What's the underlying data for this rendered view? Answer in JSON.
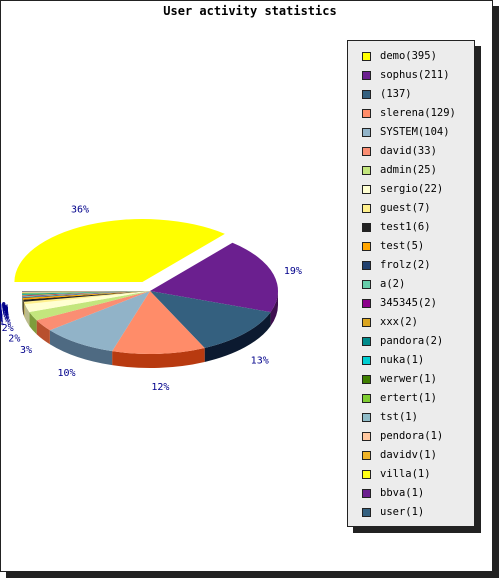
{
  "chart_data": {
    "type": "pie",
    "style": "3d-exploded",
    "title": "User activity statistics",
    "legend_position": "right",
    "slices": [
      {
        "label": "demo(395)",
        "value": 395,
        "color": "#ffff00",
        "side": "#c8c800",
        "pct_label": "36%"
      },
      {
        "label": "sophus(211)",
        "value": 211,
        "color": "#6b1f8f",
        "side": "#401050",
        "pct_label": "19%"
      },
      {
        "label": "(137)",
        "value": 137,
        "color": "#34607f",
        "side": "#0c1a30",
        "pct_label": "13%"
      },
      {
        "label": "slerena(129)",
        "value": 129,
        "color": "#ff8c69",
        "side": "#b83a10",
        "pct_label": "12%"
      },
      {
        "label": "SYSTEM(104)",
        "value": 104,
        "color": "#91b3c8",
        "side": "#4e6a82",
        "pct_label": "10%"
      },
      {
        "label": "david(33)",
        "value": 33,
        "color": "#fa8e73",
        "side": "#b8502e",
        "pct_label": "3%"
      },
      {
        "label": "admin(25)",
        "value": 25,
        "color": "#c3e67d",
        "side": "#7e9c3c",
        "pct_label": "2%"
      },
      {
        "label": "sergio(22)",
        "value": 22,
        "color": "#ffffd2",
        "side": "#bcbc8e",
        "pct_label": "2%"
      },
      {
        "label": "guest(7)",
        "value": 7,
        "color": "#fff08c",
        "side": "#b8a850",
        "pct_label": "1%"
      },
      {
        "label": "test1(6)",
        "value": 6,
        "color": "#222222",
        "side": "#000000",
        "pct_label": "1%"
      },
      {
        "label": "test(5)",
        "value": 5,
        "color": "#ffa500",
        "side": "#b87400",
        "pct_label": "0%"
      },
      {
        "label": "frolz(2)",
        "value": 2,
        "color": "#20406e",
        "side": "#0c1c38",
        "pct_label": "0%"
      },
      {
        "label": "a(2)",
        "value": 2,
        "color": "#66cdaa",
        "side": "#3a8a70",
        "pct_label": "0%"
      },
      {
        "label": "345345(2)",
        "value": 2,
        "color": "#8b008b",
        "side": "#500050",
        "pct_label": "0%"
      },
      {
        "label": "xxx(2)",
        "value": 2,
        "color": "#daa520",
        "side": "#9a7010",
        "pct_label": "0%"
      },
      {
        "label": "pandora(2)",
        "value": 2,
        "color": "#008b8b",
        "side": "#005050",
        "pct_label": "0%"
      },
      {
        "label": "nuka(1)",
        "value": 1,
        "color": "#00ced1",
        "side": "#008a8c",
        "pct_label": "0%"
      },
      {
        "label": "werwer(1)",
        "value": 1,
        "color": "#3f7f00",
        "side": "#224800",
        "pct_label": "0%"
      },
      {
        "label": "ertert(1)",
        "value": 1,
        "color": "#7fcd32",
        "side": "#4a8a12",
        "pct_label": "0%"
      },
      {
        "label": "tst(1)",
        "value": 1,
        "color": "#8fbcc8",
        "side": "#547a86",
        "pct_label": "0%"
      },
      {
        "label": "pendora(1)",
        "value": 1,
        "color": "#ffc8a0",
        "side": "#b88a66",
        "pct_label": "0%"
      },
      {
        "label": "davidv(1)",
        "value": 1,
        "color": "#f0b428",
        "side": "#a87810",
        "pct_label": "0%"
      },
      {
        "label": "villa(1)",
        "value": 1,
        "color": "#ffff14",
        "side": "#c8c800",
        "pct_label": "0%"
      },
      {
        "label": "bbva(1)",
        "value": 1,
        "color": "#6b1f8f",
        "side": "#401050",
        "pct_label": "0%"
      },
      {
        "label": "user(1)",
        "value": 1,
        "color": "#34607f",
        "side": "#0c1a30",
        "pct_label": "0%"
      }
    ]
  }
}
